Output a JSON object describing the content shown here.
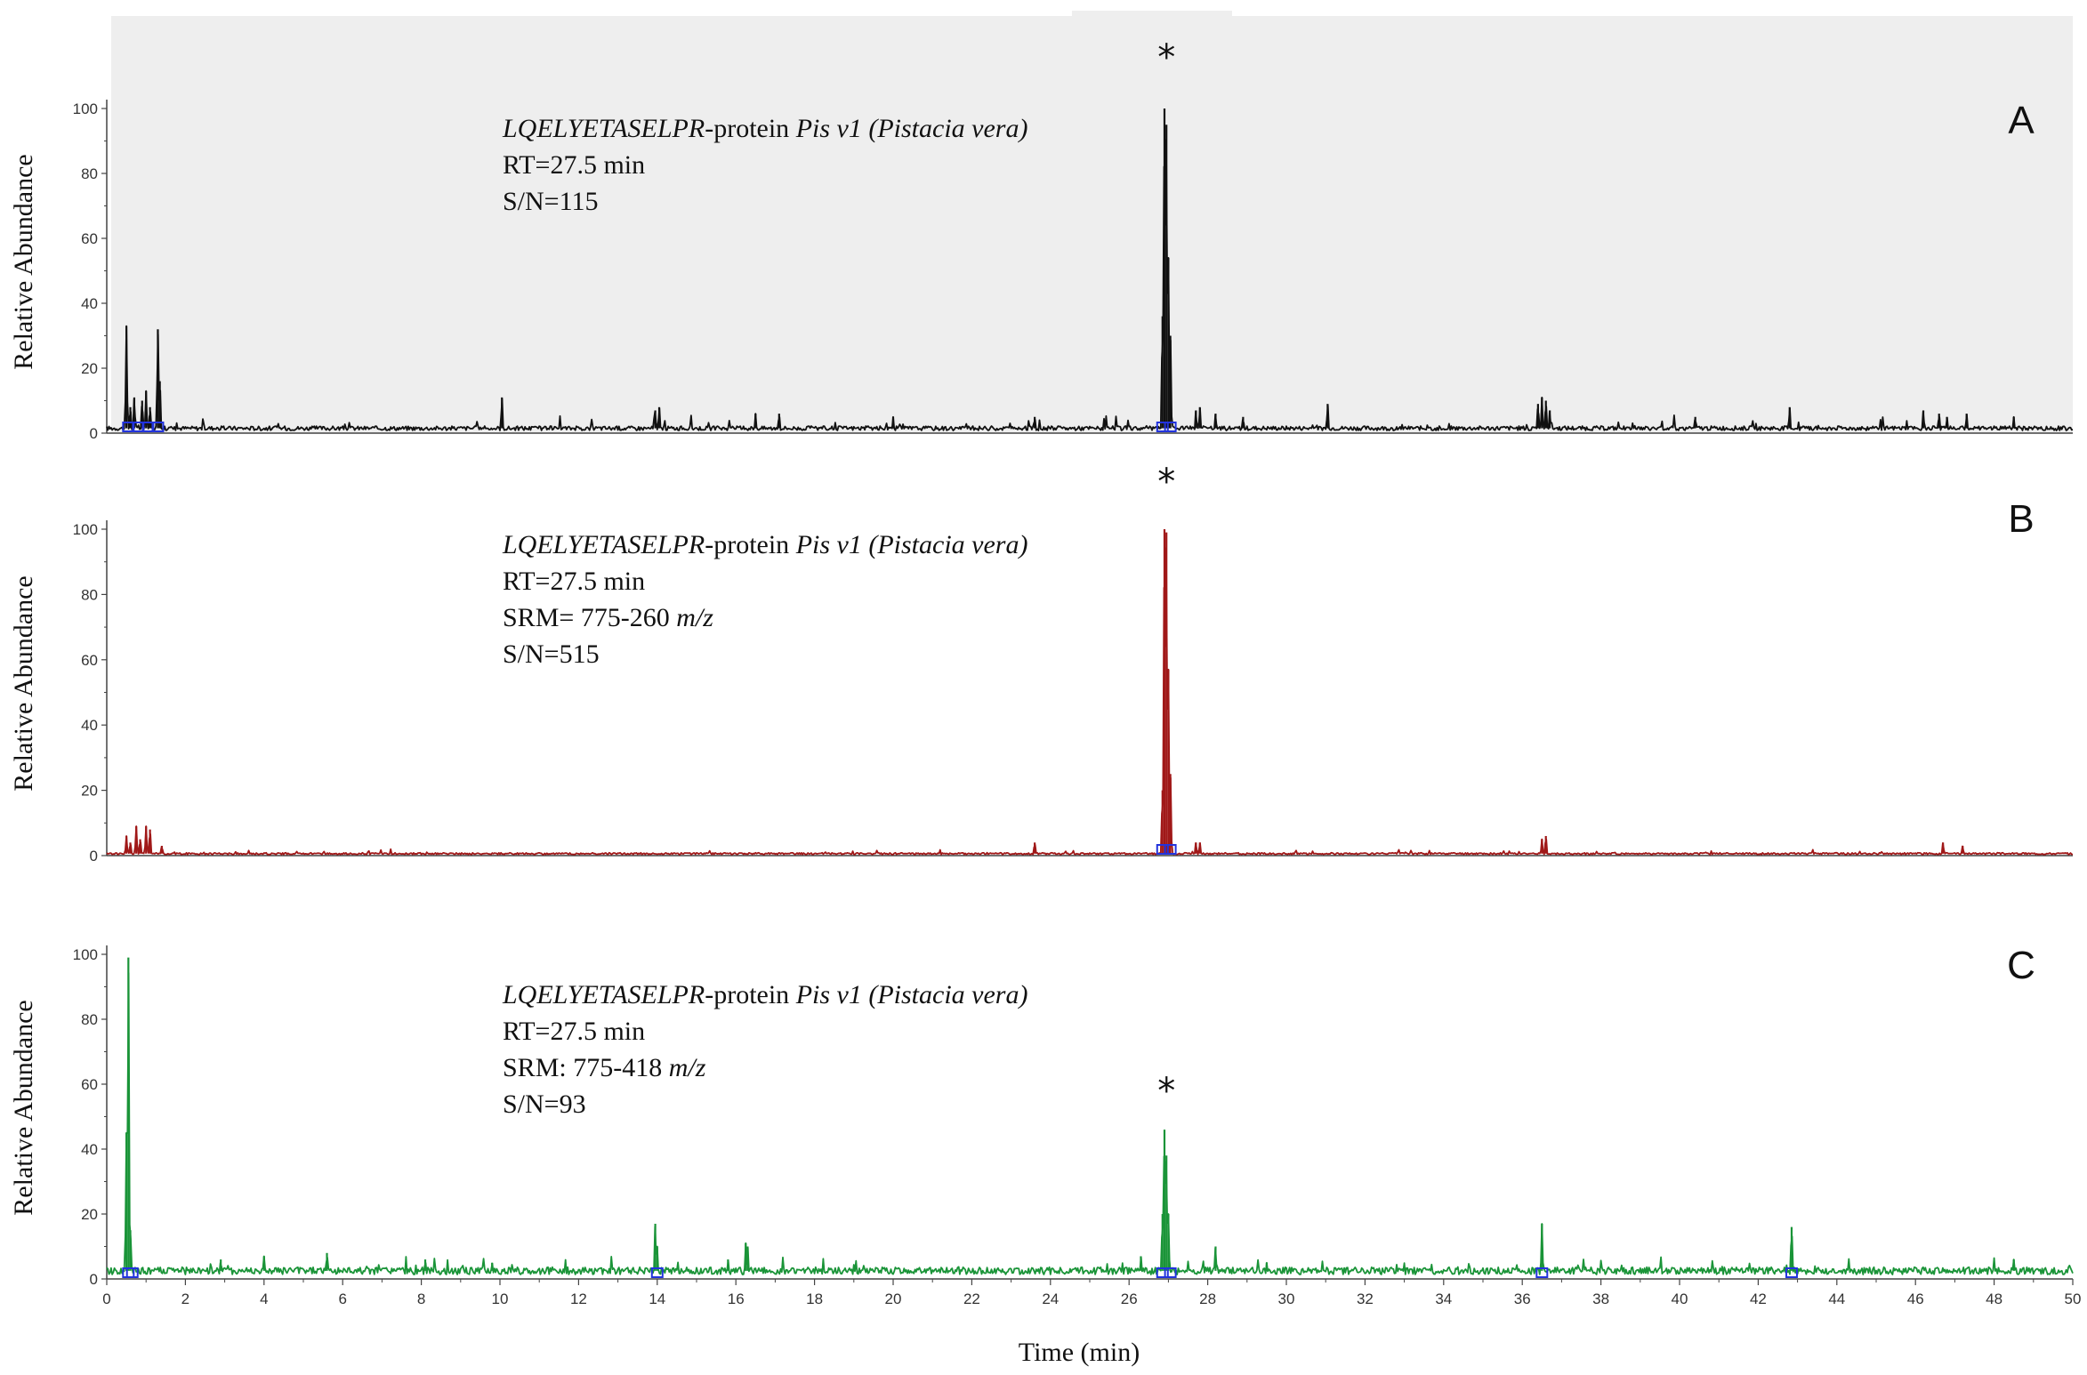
{
  "chart_data": [
    {
      "type": "line",
      "panel_label": "A",
      "ylabel": "Relative Abundance",
      "xlim": [
        0,
        50
      ],
      "ylim": [
        0,
        100
      ],
      "yticks": [
        "0",
        "20",
        "40",
        "60",
        "80",
        "100"
      ],
      "background": "#eeeeee",
      "line_color": "#111111",
      "marker": "*",
      "annotation": [
        [
          {
            "t": "LQELYETASELPR",
            "i": true
          },
          {
            "t": "-protein ",
            "i": false
          },
          {
            "t": "Pis v1 (Pistacia vera)",
            "i": true
          }
        ],
        [
          {
            "t": "RT=27.5 min",
            "i": false
          }
        ],
        [
          {
            "t": "S/N=115",
            "i": false
          }
        ]
      ],
      "baseline": 1.5,
      "series": [
        {
          "peaks": [
            {
              "x": 0.5,
              "y": 33
            },
            {
              "x": 0.6,
              "y": 8
            },
            {
              "x": 0.7,
              "y": 11
            },
            {
              "x": 0.9,
              "y": 10
            },
            {
              "x": 1.0,
              "y": 13
            },
            {
              "x": 1.1,
              "y": 8
            },
            {
              "x": 1.3,
              "y": 32
            },
            {
              "x": 1.35,
              "y": 16
            },
            {
              "x": 10.05,
              "y": 11
            },
            {
              "x": 13.95,
              "y": 7
            },
            {
              "x": 14.05,
              "y": 8
            },
            {
              "x": 16.5,
              "y": 6
            },
            {
              "x": 17.1,
              "y": 6
            },
            {
              "x": 20.0,
              "y": 5
            },
            {
              "x": 23.6,
              "y": 5
            },
            {
              "x": 26.85,
              "y": 36
            },
            {
              "x": 26.9,
              "y": 100
            },
            {
              "x": 26.95,
              "y": 95
            },
            {
              "x": 27.0,
              "y": 54
            },
            {
              "x": 27.05,
              "y": 30
            },
            {
              "x": 27.7,
              "y": 7
            },
            {
              "x": 27.8,
              "y": 8
            },
            {
              "x": 28.2,
              "y": 6
            },
            {
              "x": 28.9,
              "y": 5
            },
            {
              "x": 31.05,
              "y": 9
            },
            {
              "x": 36.4,
              "y": 9
            },
            {
              "x": 36.5,
              "y": 11
            },
            {
              "x": 36.6,
              "y": 10
            },
            {
              "x": 36.7,
              "y": 7
            },
            {
              "x": 40.4,
              "y": 5
            },
            {
              "x": 42.8,
              "y": 8
            },
            {
              "x": 46.2,
              "y": 7
            },
            {
              "x": 46.6,
              "y": 6
            },
            {
              "x": 46.8,
              "y": 5
            },
            {
              "x": 47.3,
              "y": 6
            },
            {
              "x": 48.5,
              "y": 5
            }
          ],
          "markers_x": [
            0.55,
            0.8,
            1.05,
            1.3,
            26.85,
            27.05
          ]
        }
      ]
    },
    {
      "type": "line",
      "panel_label": "B",
      "ylabel": "Relative Abundance",
      "xlim": [
        0,
        50
      ],
      "ylim": [
        0,
        100
      ],
      "yticks": [
        "0",
        "20",
        "40",
        "60",
        "80",
        "100"
      ],
      "background": "#ffffff",
      "line_color": "#a01818",
      "marker": "*",
      "annotation": [
        [
          {
            "t": "LQELYETASELPR",
            "i": true
          },
          {
            "t": "-protein ",
            "i": false
          },
          {
            "t": "Pis v1 (Pistacia vera)",
            "i": true
          }
        ],
        [
          {
            "t": "RT=27.5 min",
            "i": false
          }
        ],
        [
          {
            "t": "SRM= 775-260 ",
            "i": false
          },
          {
            "t": "m/z",
            "i": true
          }
        ],
        [
          {
            "t": "S/N=515",
            "i": false
          }
        ]
      ],
      "baseline": 0.6,
      "series": [
        {
          "peaks": [
            {
              "x": 0.5,
              "y": 6
            },
            {
              "x": 0.6,
              "y": 4
            },
            {
              "x": 0.75,
              "y": 9
            },
            {
              "x": 0.85,
              "y": 5
            },
            {
              "x": 1.0,
              "y": 9
            },
            {
              "x": 1.1,
              "y": 8
            },
            {
              "x": 1.4,
              "y": 3
            },
            {
              "x": 23.6,
              "y": 4
            },
            {
              "x": 26.85,
              "y": 20
            },
            {
              "x": 26.9,
              "y": 100
            },
            {
              "x": 26.95,
              "y": 99
            },
            {
              "x": 27.0,
              "y": 57
            },
            {
              "x": 27.05,
              "y": 25
            },
            {
              "x": 27.7,
              "y": 4
            },
            {
              "x": 27.8,
              "y": 4
            },
            {
              "x": 36.5,
              "y": 5
            },
            {
              "x": 36.6,
              "y": 6
            },
            {
              "x": 46.7,
              "y": 4
            },
            {
              "x": 47.2,
              "y": 3
            }
          ],
          "markers_x": [
            26.85,
            27.05
          ]
        }
      ]
    },
    {
      "type": "line",
      "panel_label": "C",
      "ylabel": "Relative Abundance",
      "xlabel": "Time (min)",
      "xlim": [
        0,
        50
      ],
      "ylim": [
        0,
        100
      ],
      "yticks": [
        "0",
        "20",
        "40",
        "60",
        "80",
        "100"
      ],
      "xticks": [
        "0",
        "2",
        "4",
        "6",
        "8",
        "10",
        "12",
        "14",
        "16",
        "18",
        "20",
        "22",
        "24",
        "26",
        "28",
        "30",
        "32",
        "34",
        "36",
        "38",
        "40",
        "42",
        "44",
        "46",
        "48",
        "50"
      ],
      "background": "#ffffff",
      "line_color": "#1a9438",
      "marker": "*",
      "annotation": [
        [
          {
            "t": "LQELYETASELPR",
            "i": true
          },
          {
            "t": "-protein ",
            "i": false
          },
          {
            "t": "Pis v1 (Pistacia vera)",
            "i": true
          }
        ],
        [
          {
            "t": "RT=27.5 min",
            "i": false
          }
        ],
        [
          {
            "t": "SRM: 775-418 ",
            "i": false
          },
          {
            "t": "m/z",
            "i": true
          }
        ],
        [
          {
            "t": "S/N=93",
            "i": false
          }
        ]
      ],
      "baseline": 2.5,
      "series": [
        {
          "peaks": [
            {
              "x": 0.5,
              "y": 45
            },
            {
              "x": 0.55,
              "y": 99
            },
            {
              "x": 0.6,
              "y": 15
            },
            {
              "x": 2.9,
              "y": 6
            },
            {
              "x": 4.0,
              "y": 7
            },
            {
              "x": 5.6,
              "y": 8
            },
            {
              "x": 8.1,
              "y": 6
            },
            {
              "x": 9.8,
              "y": 5
            },
            {
              "x": 13.95,
              "y": 17
            },
            {
              "x": 14.0,
              "y": 10
            },
            {
              "x": 15.8,
              "y": 6
            },
            {
              "x": 16.25,
              "y": 11
            },
            {
              "x": 16.3,
              "y": 10
            },
            {
              "x": 26.3,
              "y": 7
            },
            {
              "x": 26.85,
              "y": 20
            },
            {
              "x": 26.9,
              "y": 46
            },
            {
              "x": 26.95,
              "y": 38
            },
            {
              "x": 27.0,
              "y": 20
            },
            {
              "x": 28.2,
              "y": 10
            },
            {
              "x": 29.5,
              "y": 5
            },
            {
              "x": 36.5,
              "y": 17
            },
            {
              "x": 42.85,
              "y": 16
            },
            {
              "x": 48.5,
              "y": 6
            }
          ],
          "markers_x": [
            0.55,
            0.65,
            14.0,
            26.85,
            27.05,
            36.5,
            42.85
          ]
        }
      ]
    }
  ]
}
